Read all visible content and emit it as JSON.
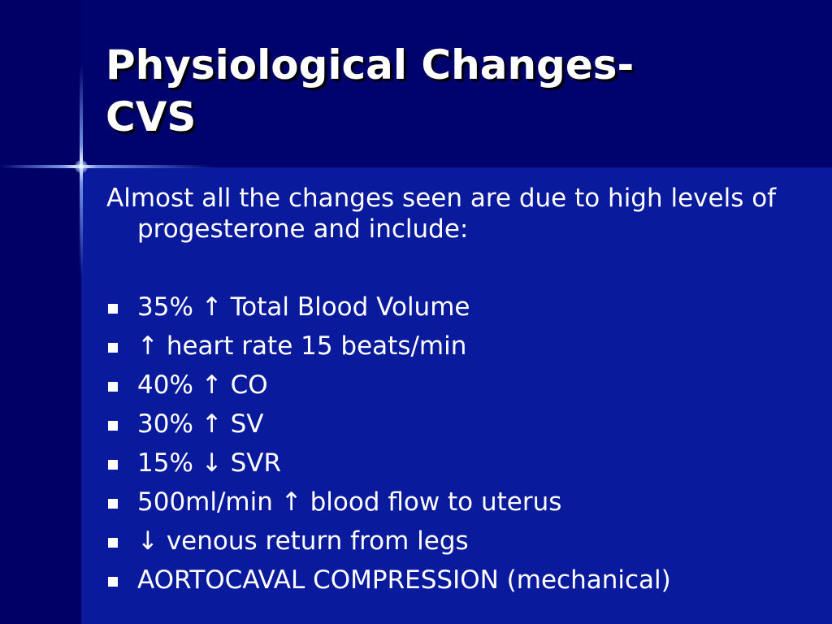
{
  "slide": {
    "title_line1": "Physiological Changes-",
    "title_line2": "CVS",
    "intro": "Almost all the changes seen are due to high levels of progesterone and include:",
    "bullets": [
      "35% ↑ Total Blood Volume",
      "↑ heart rate 15 beats/min",
      "40% ↑ CO",
      "30% ↑ SV",
      "15% ↓ SVR",
      "500ml/min ↑ blood flow to uterus",
      "↓ venous return from legs",
      "AORTOCAVAL COMPRESSION (mechanical)"
    ]
  },
  "colors": {
    "background": "#000066",
    "title_band": "#00036e",
    "body_area": "#0a1a9c",
    "text": "#ffffff"
  }
}
